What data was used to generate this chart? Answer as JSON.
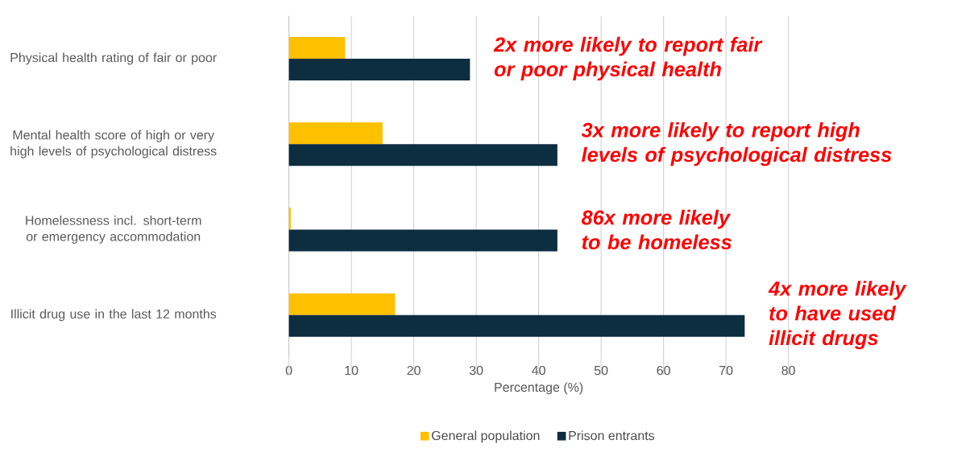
{
  "chart_data": {
    "type": "bar",
    "orientation": "horizontal",
    "categories": [
      "Physical health rating of fair or poor",
      "Mental health score of high or very high levels of psychological distress",
      "Homelessness incl. short-term or emergency accommodation",
      "Illicit drug use in the last 12 months"
    ],
    "series": [
      {
        "name": "General population",
        "color": "#ffc000",
        "values": [
          9,
          15,
          0.3,
          17
        ]
      },
      {
        "name": "Prison entrants",
        "color": "#0d2d40",
        "values": [
          29,
          43,
          43,
          73
        ]
      }
    ],
    "xlabel": "Percentage (%)",
    "xlim": [
      0,
      80
    ],
    "xticks": [
      0,
      10,
      20,
      30,
      40,
      50,
      60,
      70,
      80
    ],
    "grid": "x",
    "legend": "bottom",
    "annotations": [
      "2x more likely to report fair or poor physical health",
      "3x more likely to report high levels of psychological distress",
      "86x more likely to be homeless",
      "4x more likely to have used illicit drugs"
    ]
  }
}
